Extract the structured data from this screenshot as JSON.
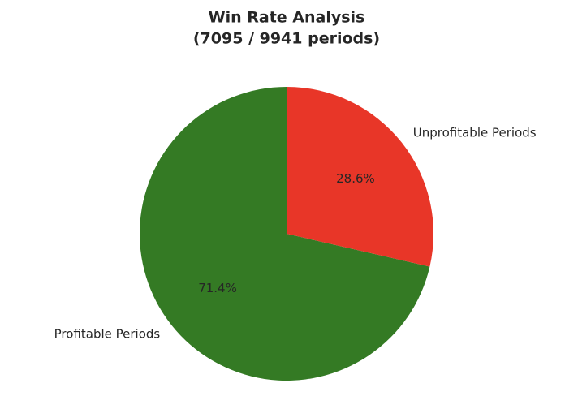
{
  "chart_data": {
    "type": "pie",
    "title": "Win Rate Analysis",
    "subtitle": "(7095 / 9941 periods)",
    "categories": [
      "Profitable Periods",
      "Unprofitable Periods"
    ],
    "values": [
      71.4,
      28.6
    ],
    "value_labels": [
      "71.4%",
      "28.6%"
    ],
    "colors": [
      "#347a24",
      "#e83628"
    ]
  }
}
